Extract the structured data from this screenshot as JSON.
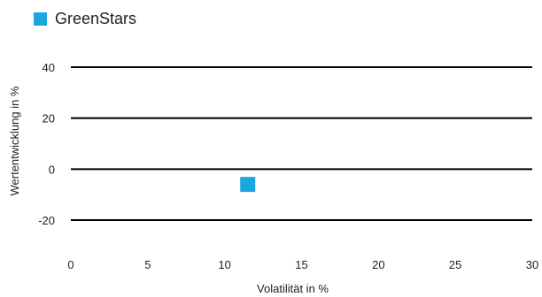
{
  "chart_data": {
    "type": "scatter",
    "xlabel": "Volatilität in %",
    "ylabel": "Wertentwicklung in %",
    "xlim": [
      0,
      30
    ],
    "ylim": [
      -20,
      40
    ],
    "xticks": [
      "0",
      "5",
      "10",
      "15",
      "20",
      "25",
      "30"
    ],
    "yticks": [
      "40",
      "20",
      "0",
      "-20"
    ],
    "grid": "horizontal",
    "legend_position": "top-left",
    "series": [
      {
        "name": "GreenStars",
        "color": "#1aa7e0",
        "marker": "square",
        "points": [
          {
            "x": 11.5,
            "y": -6
          }
        ]
      }
    ]
  }
}
